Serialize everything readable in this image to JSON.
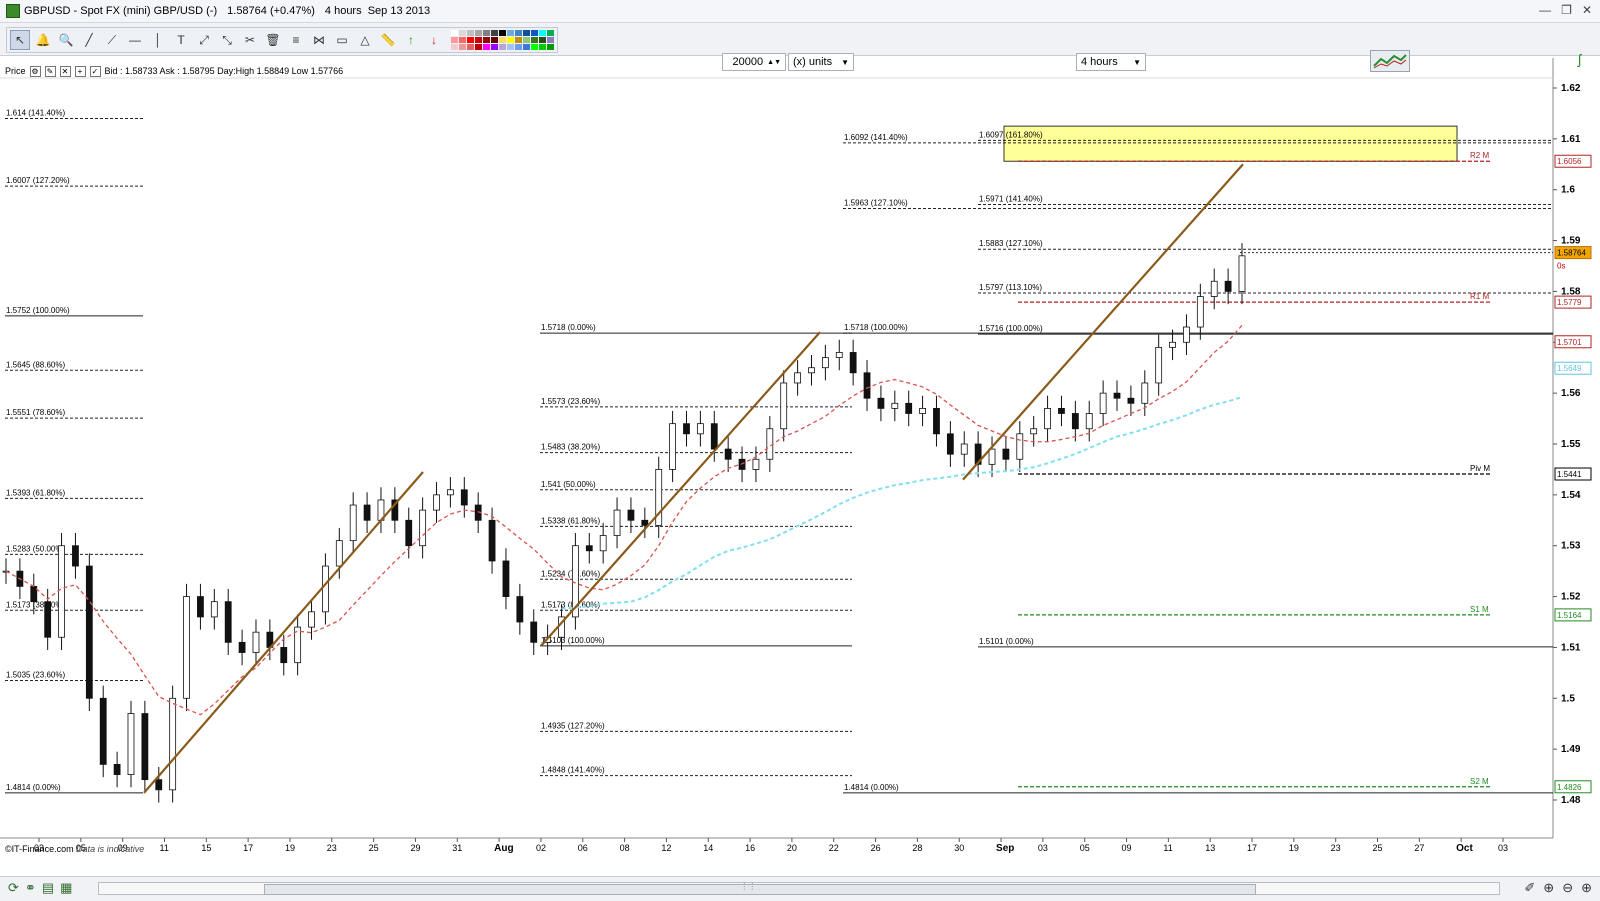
{
  "window": {
    "title_parts": [
      "GBPUSD - Spot FX (mini) GBP/USD (-)",
      "1.58764 (+0.47%)",
      "4 hours  Sep 13 2013"
    ],
    "controls": [
      "—",
      "❐",
      "✕"
    ]
  },
  "toolbar": {
    "tools": [
      {
        "name": "pointer",
        "glyph": "↖"
      },
      {
        "name": "alert",
        "glyph": "🔔"
      },
      {
        "name": "zoom",
        "glyph": "🔍"
      },
      {
        "name": "line",
        "glyph": "╱"
      },
      {
        "name": "trend-line",
        "glyph": "⟋"
      },
      {
        "name": "horizontal-line",
        "glyph": "—"
      },
      {
        "name": "vertical-line",
        "glyph": "│"
      },
      {
        "name": "text",
        "glyph": "T"
      },
      {
        "name": "fib-arc",
        "glyph": "⤢"
      },
      {
        "name": "fib-fan",
        "glyph": "⤡"
      },
      {
        "name": "tools",
        "glyph": "✂"
      },
      {
        "name": "delete",
        "glyph": "🗑"
      },
      {
        "name": "fib-retrace",
        "glyph": "≡"
      },
      {
        "name": "andrews",
        "glyph": "⋈"
      },
      {
        "name": "rectangle",
        "glyph": "▭"
      },
      {
        "name": "triangle",
        "glyph": "△"
      },
      {
        "name": "ruler",
        "glyph": "📏"
      },
      {
        "name": "buy-arrow",
        "glyph": "↑"
      },
      {
        "name": "sell-arrow",
        "glyph": "↓"
      }
    ],
    "palette": [
      "#ffffff",
      "#d9d9d9",
      "#bfbfbf",
      "#a6a6a6",
      "#808080",
      "#404040",
      "#000000",
      "#6fa8dc",
      "#3d85c6",
      "#0b5394",
      "#1155cc",
      "#00ffff",
      "#00b050",
      "#ff9999",
      "#ff6666",
      "#ff0000",
      "#cc0000",
      "#990000",
      "#660000",
      "#ffd966",
      "#ffff00",
      "#bf9000",
      "#93c47d",
      "#38761d",
      "#274e13",
      "#8e7cc3",
      "#f4cccc",
      "#ea9999",
      "#e06666",
      "#c00000",
      "#ff00ff",
      "#9900ff",
      "#b4a7d6",
      "#a4c2f4",
      "#6d9eeb",
      "#3c78d8",
      "#00ff00",
      "#00cc00",
      "#009900"
    ],
    "quantity": "20000",
    "units": "(x) units",
    "interval": "4 hours"
  },
  "infoline": {
    "label": "Price",
    "quote": "Bid : 1.58733 Ask : 1.58795 Day:High 1.58849 Low 1.57766"
  },
  "footer": {
    "source": "©IT-Finance.com",
    "note": "Data is indicative"
  },
  "chart_data": {
    "type": "candlestick",
    "instrument": "GBPUSD",
    "timeframe": "4 hours",
    "ylim": [
      1.475,
      1.628
    ],
    "y_ticks": [
      "1.62",
      "1.61",
      "1.6",
      "1.59",
      "1.58",
      "1.57",
      "1.56",
      "1.55",
      "1.54",
      "1.53",
      "1.52",
      "1.51",
      "1.5",
      "1.49",
      "1.48"
    ],
    "x_tick_labels": [
      "03",
      "05",
      "09",
      "11",
      "15",
      "17",
      "19",
      "23",
      "25",
      "29",
      "31",
      "Aug",
      "02",
      "06",
      "08",
      "12",
      "14",
      "16",
      "20",
      "22",
      "26",
      "28",
      "30",
      "Sep",
      "03",
      "05",
      "09",
      "11",
      "13",
      "17",
      "19",
      "23",
      "25",
      "27",
      "Oct",
      "03"
    ],
    "price_tags": [
      {
        "label": "1.6056",
        "color": "#b22222"
      },
      {
        "label": "1.58764",
        "color": "#c07000"
      },
      {
        "label": "1.5779",
        "color": "#b22222"
      },
      {
        "label": "1.5701",
        "color": "#b22222"
      },
      {
        "label": "1.5649",
        "color": "#5bc8e0"
      },
      {
        "label": "1.5441",
        "color": "#000000"
      },
      {
        "label": "1.5164",
        "color": "#228b22"
      },
      {
        "label": "1.4826",
        "color": "#228b22"
      }
    ],
    "current_price_marker": "0s",
    "pivot_levels": [
      {
        "label": "R2 M",
        "value": 1.6056,
        "color": "#b22222"
      },
      {
        "label": "R1 M",
        "value": 1.5779,
        "color": "#b22222"
      },
      {
        "label": "Piv M",
        "value": 1.5441,
        "color": "#000000"
      },
      {
        "label": "S1 M",
        "value": 1.5164,
        "color": "#228b22"
      },
      {
        "label": "S2 M",
        "value": 1.4826,
        "color": "#228b22"
      }
    ],
    "fib_sets": [
      {
        "set": "left",
        "labels": [
          {
            "text": "1.614 (141.40%)",
            "value": 1.614
          },
          {
            "text": "1.6007 (127.20%)",
            "value": 1.6007
          },
          {
            "text": "1.5752 (100.00%)",
            "value": 1.5752
          },
          {
            "text": "1.5645 (88.60%)",
            "value": 1.5645
          },
          {
            "text": "1.5551 (78.60%)",
            "value": 1.5551
          },
          {
            "text": "1.5393 (61.80%)",
            "value": 1.5393
          },
          {
            "text": "1.5283 (50.00%)",
            "value": 1.5283
          },
          {
            "text": "1.5173 (38.20%)",
            "value": 1.5173
          },
          {
            "text": "1.5035 (23.60%)",
            "value": 1.5035
          },
          {
            "text": "1.4814 (0.00%)",
            "value": 1.4814
          }
        ]
      },
      {
        "set": "middle",
        "labels": [
          {
            "text": "1.5718 (0.00%)",
            "value": 1.5718
          },
          {
            "text": "1.5573 (23.60%)",
            "value": 1.5573
          },
          {
            "text": "1.5483 (38.20%)",
            "value": 1.5483
          },
          {
            "text": "1.541 (50.00%)",
            "value": 1.541
          },
          {
            "text": "1.5338 (61.80%)",
            "value": 1.5338
          },
          {
            "text": "1.5234 (78.60%)",
            "value": 1.5234
          },
          {
            "text": "1.5173 (88.60%)",
            "value": 1.5173
          },
          {
            "text": "1.5103 (100.00%)",
            "value": 1.5103
          },
          {
            "text": "1.4935 (127.20%)",
            "value": 1.4935
          },
          {
            "text": "1.4848 (141.40%)",
            "value": 1.4848
          }
        ]
      },
      {
        "set": "right-a",
        "labels": [
          {
            "text": "1.6092 (141.40%)",
            "value": 1.6092
          },
          {
            "text": "1.5963 (127.10%)",
            "value": 1.5963
          },
          {
            "text": "1.5718 (100.00%)",
            "value": 1.5718
          },
          {
            "text": "1.4814 (0.00%)",
            "value": 1.4814
          }
        ]
      },
      {
        "set": "right-b",
        "labels": [
          {
            "text": "1.6097 (161.80%)",
            "value": 1.6097
          },
          {
            "text": "1.5971 (141.40%)",
            "value": 1.5971
          },
          {
            "text": "1.5883 (127.10%)",
            "value": 1.5883
          },
          {
            "text": "1.5797 (113.10%)",
            "value": 1.5797
          },
          {
            "text": "1.5716 (100.00%)",
            "value": 1.5716
          },
          {
            "text": "1.5101 (0.00%)",
            "value": 1.5101
          }
        ]
      }
    ],
    "target_zone": {
      "from": 1.6056,
      "to": 1.6125,
      "color": "#ffff99"
    },
    "trendlines": [
      {
        "from": [
          1.4814
        ],
        "to": [
          1.5445
        ],
        "color": "#8b5a1a"
      },
      {
        "from": [
          1.5103
        ],
        "to": [
          1.572
        ],
        "color": "#8b5a1a"
      },
      {
        "from": [
          1.543
        ],
        "to": [
          1.605
        ],
        "color": "#8b5a1a"
      }
    ],
    "close_path": [
      1.525,
      1.522,
      1.519,
      1.512,
      1.53,
      1.526,
      1.5,
      1.487,
      1.485,
      1.497,
      1.484,
      1.482,
      1.5,
      1.52,
      1.516,
      1.519,
      1.511,
      1.509,
      1.513,
      1.51,
      1.507,
      1.514,
      1.517,
      1.526,
      1.531,
      1.538,
      1.535,
      1.539,
      1.535,
      1.53,
      1.537,
      1.54,
      1.541,
      1.538,
      1.535,
      1.527,
      1.52,
      1.515,
      1.511,
      1.512,
      1.516,
      1.53,
      1.529,
      1.532,
      1.537,
      1.535,
      1.534,
      1.545,
      1.554,
      1.552,
      1.554,
      1.549,
      1.547,
      1.545,
      1.547,
      1.553,
      1.562,
      1.564,
      1.565,
      1.567,
      1.568,
      1.564,
      1.559,
      1.557,
      1.558,
      1.556,
      1.557,
      1.552,
      1.548,
      1.55,
      1.546,
      1.549,
      1.547,
      1.552,
      1.553,
      1.557,
      1.556,
      1.553,
      1.556,
      1.56,
      1.559,
      1.558,
      1.562,
      1.569,
      1.57,
      1.573,
      1.579,
      1.582,
      1.58,
      1.587
    ]
  }
}
